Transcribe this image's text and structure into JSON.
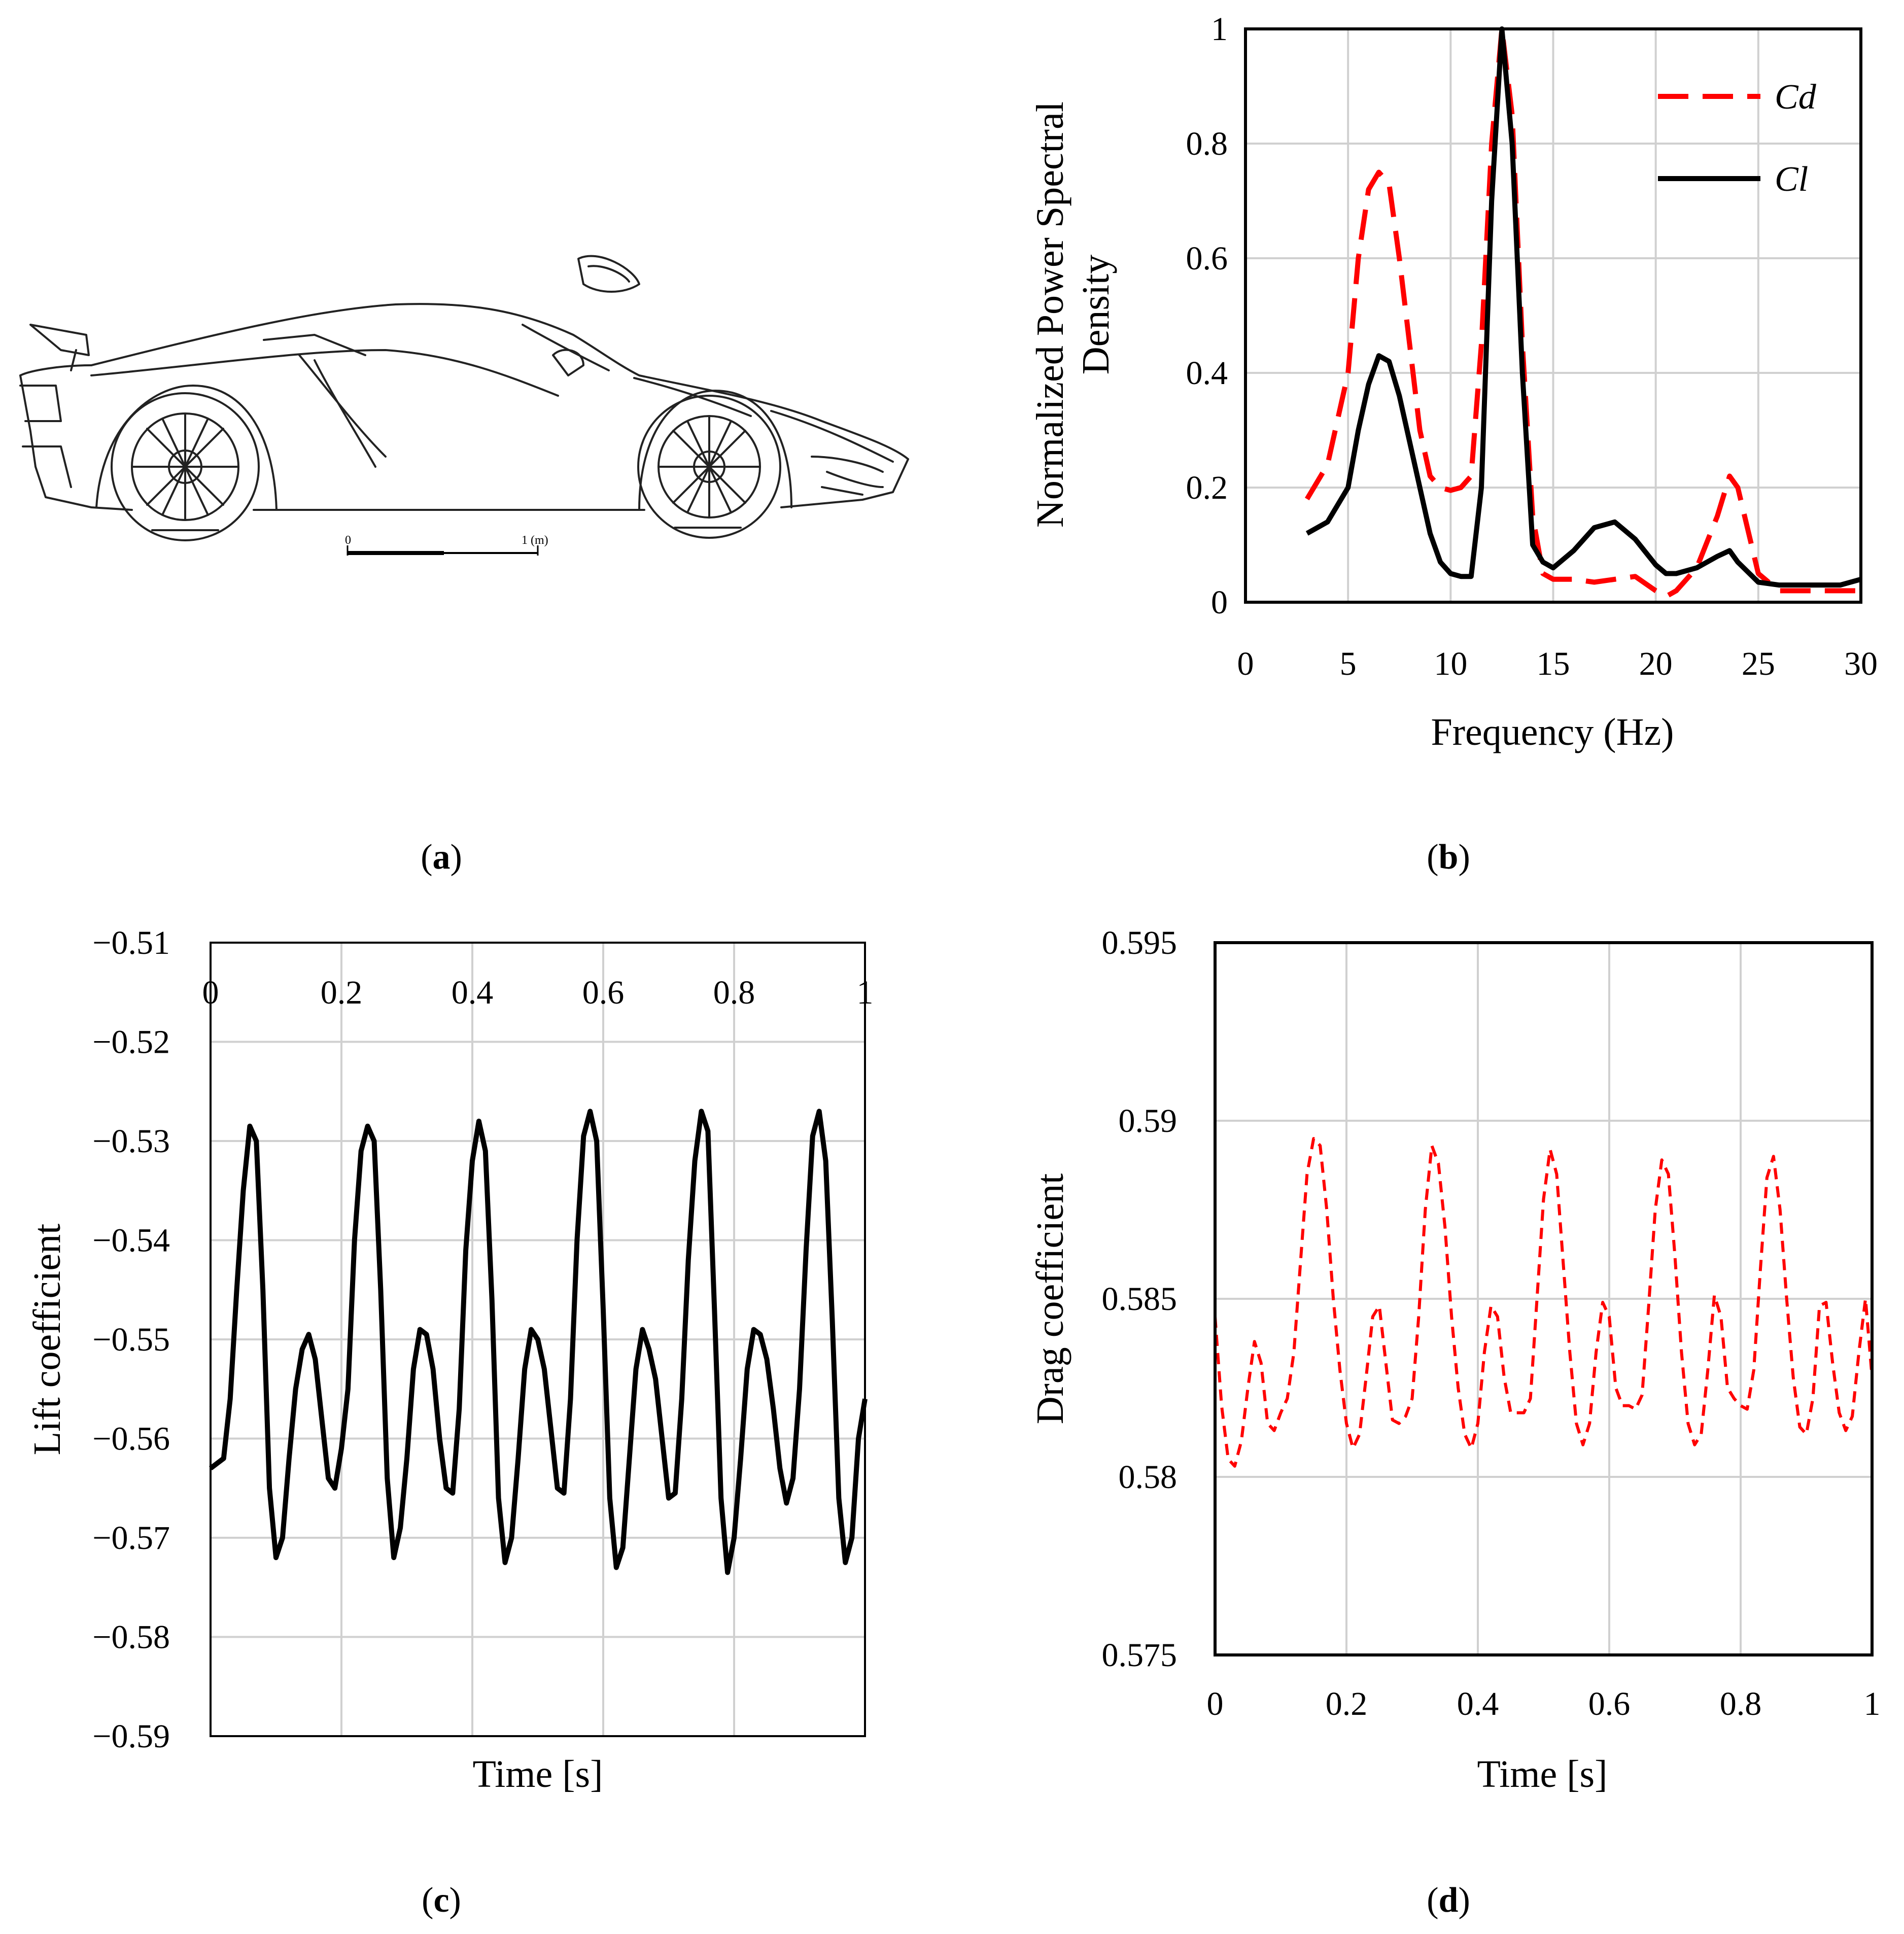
{
  "figure": {
    "panel_labels": [
      {
        "open": "(",
        "letter": "a",
        "close": ")"
      },
      {
        "open": "(",
        "letter": "b",
        "close": ")"
      },
      {
        "open": "(",
        "letter": "c",
        "close": ")"
      },
      {
        "open": "(",
        "letter": "d",
        "close": ")"
      }
    ],
    "car_scale": {
      "start_label": "0",
      "end_label": "1 (m)"
    }
  },
  "colors": {
    "cd": "#ff0000",
    "cl": "#000000",
    "grid": "#d0d0d0"
  },
  "chart_data": [
    {
      "id": "b",
      "type": "line",
      "title": "",
      "xlabel": "Frequency (Hz)",
      "ylabel_lines": [
        "Normalized Power Spectral",
        "Density"
      ],
      "xlim": [
        0,
        30
      ],
      "ylim": [
        0,
        1
      ],
      "xticks": [
        0,
        5,
        10,
        15,
        20,
        25,
        30
      ],
      "yticks": [
        0,
        0.2,
        0.4,
        0.6,
        0.8,
        1
      ],
      "xtick_labels": [
        "0",
        "5",
        "10",
        "15",
        "20",
        "25",
        "30"
      ],
      "ytick_labels": [
        "0",
        "0.2",
        "0.4",
        "0.6",
        "0.8",
        "1"
      ],
      "legend_position": "top-right",
      "series": [
        {
          "name": "Cd",
          "style": "long-dash",
          "color": "#ff0000",
          "x": [
            3,
            4,
            5,
            5.5,
            6,
            6.5,
            7,
            7.5,
            8,
            8.5,
            9,
            9.5,
            10,
            10.5,
            11,
            11.5,
            12,
            12.5,
            13,
            13.5,
            14,
            14.5,
            15,
            16,
            17,
            18,
            19,
            20,
            20.5,
            21,
            22,
            23,
            23.6,
            24,
            25,
            26,
            27,
            28,
            29,
            30
          ],
          "y": [
            0.18,
            0.24,
            0.4,
            0.6,
            0.72,
            0.75,
            0.73,
            0.6,
            0.45,
            0.3,
            0.22,
            0.2,
            0.195,
            0.2,
            0.22,
            0.45,
            0.8,
            1.0,
            0.85,
            0.45,
            0.15,
            0.05,
            0.04,
            0.04,
            0.035,
            0.04,
            0.045,
            0.02,
            0.01,
            0.02,
            0.06,
            0.15,
            0.22,
            0.2,
            0.05,
            0.02,
            0.02,
            0.02,
            0.02,
            0.02
          ]
        },
        {
          "name": "Cl",
          "style": "solid",
          "color": "#000000",
          "x": [
            3,
            4,
            5,
            5.5,
            6,
            6.5,
            7,
            7.5,
            8,
            8.5,
            9,
            9.5,
            10,
            10.5,
            11,
            11.5,
            12,
            12.5,
            13,
            13.5,
            14,
            14.5,
            15,
            16,
            17,
            18,
            19,
            20,
            20.5,
            21,
            22,
            23,
            23.6,
            24,
            25,
            26,
            27,
            28,
            29,
            30
          ],
          "y": [
            0.12,
            0.14,
            0.2,
            0.3,
            0.38,
            0.43,
            0.42,
            0.36,
            0.28,
            0.2,
            0.12,
            0.07,
            0.05,
            0.045,
            0.045,
            0.2,
            0.7,
            1.0,
            0.8,
            0.4,
            0.1,
            0.07,
            0.06,
            0.09,
            0.13,
            0.14,
            0.11,
            0.065,
            0.05,
            0.05,
            0.06,
            0.08,
            0.09,
            0.07,
            0.035,
            0.03,
            0.03,
            0.03,
            0.03,
            0.04
          ]
        }
      ]
    },
    {
      "id": "c",
      "type": "line",
      "title": "",
      "xlabel": "Time [s]",
      "ylabel": "Lift coefficient",
      "xlim": [
        0,
        1
      ],
      "ylim": [
        -0.59,
        -0.51
      ],
      "xticks": [
        0,
        0.2,
        0.4,
        0.6,
        0.8,
        1
      ],
      "yticks": [
        -0.59,
        -0.58,
        -0.57,
        -0.56,
        -0.55,
        -0.54,
        -0.53,
        -0.52,
        -0.51
      ],
      "xtick_labels": [
        "0",
        "0.2",
        "0.4",
        "0.6",
        "0.8",
        "1"
      ],
      "ytick_labels": [
        "−0.59",
        "−0.58",
        "−0.57",
        "−0.56",
        "−0.55",
        "−0.54",
        "−0.53",
        "−0.52",
        "−0.51"
      ],
      "series": [
        {
          "name": "Cl",
          "style": "solid",
          "color": "#000000",
          "x": [
            0,
            0.01,
            0.02,
            0.03,
            0.04,
            0.05,
            0.06,
            0.07,
            0.08,
            0.09,
            0.1,
            0.11,
            0.12,
            0.13,
            0.14,
            0.15,
            0.16,
            0.17,
            0.18,
            0.19,
            0.2,
            0.21,
            0.22,
            0.23,
            0.24,
            0.25,
            0.26,
            0.27,
            0.28,
            0.29,
            0.3,
            0.31,
            0.32,
            0.33,
            0.34,
            0.35,
            0.36,
            0.37,
            0.38,
            0.39,
            0.4,
            0.41,
            0.42,
            0.43,
            0.44,
            0.45,
            0.46,
            0.47,
            0.48,
            0.49,
            0.5,
            0.51,
            0.52,
            0.53,
            0.54,
            0.55,
            0.56,
            0.57,
            0.58,
            0.59,
            0.6,
            0.61,
            0.62,
            0.63,
            0.64,
            0.65,
            0.66,
            0.67,
            0.68,
            0.69,
            0.7,
            0.71,
            0.72,
            0.73,
            0.74,
            0.75,
            0.76,
            0.77,
            0.78,
            0.79,
            0.8,
            0.81,
            0.82,
            0.83,
            0.84,
            0.85,
            0.86,
            0.87,
            0.88,
            0.89,
            0.9,
            0.91,
            0.92,
            0.93,
            0.94,
            0.95,
            0.96,
            0.97,
            0.98,
            0.99,
            1
          ],
          "y": [
            -0.563,
            -0.5625,
            -0.562,
            -0.556,
            -0.545,
            -0.535,
            -0.5285,
            -0.53,
            -0.545,
            -0.565,
            -0.572,
            -0.57,
            -0.562,
            -0.555,
            -0.551,
            -0.5495,
            -0.552,
            -0.558,
            -0.564,
            -0.565,
            -0.561,
            -0.555,
            -0.54,
            -0.531,
            -0.5285,
            -0.53,
            -0.545,
            -0.564,
            -0.572,
            -0.569,
            -0.562,
            -0.553,
            -0.549,
            -0.5495,
            -0.553,
            -0.56,
            -0.565,
            -0.5655,
            -0.557,
            -0.541,
            -0.532,
            -0.528,
            -0.531,
            -0.546,
            -0.566,
            -0.5725,
            -0.57,
            -0.562,
            -0.553,
            -0.549,
            -0.55,
            -0.553,
            -0.559,
            -0.565,
            -0.5655,
            -0.556,
            -0.54,
            -0.5295,
            -0.527,
            -0.53,
            -0.547,
            -0.566,
            -0.573,
            -0.571,
            -0.562,
            -0.553,
            -0.549,
            -0.551,
            -0.554,
            -0.56,
            -0.566,
            -0.5655,
            -0.556,
            -0.542,
            -0.532,
            -0.527,
            -0.529,
            -0.547,
            -0.566,
            -0.5735,
            -0.57,
            -0.562,
            -0.553,
            -0.549,
            -0.5495,
            -0.552,
            -0.557,
            -0.563,
            -0.5665,
            -0.564,
            -0.555,
            -0.541,
            -0.5295,
            -0.527,
            -0.532,
            -0.548,
            -0.566,
            -0.5725,
            -0.57,
            -0.56,
            -0.556
          ]
        }
      ]
    },
    {
      "id": "d",
      "type": "line",
      "title": "",
      "xlabel": "Time [s]",
      "ylabel": "Drag coefficient",
      "xlim": [
        0,
        1
      ],
      "ylim": [
        0.575,
        0.595
      ],
      "xticks": [
        0,
        0.2,
        0.4,
        0.6,
        0.8,
        1
      ],
      "yticks": [
        0.575,
        0.58,
        0.585,
        0.59,
        0.595
      ],
      "xtick_labels": [
        "0",
        "0.2",
        "0.4",
        "0.6",
        "0.8",
        "1"
      ],
      "ytick_labels": [
        "0.575",
        "0.58",
        "0.585",
        "0.59",
        "0.595"
      ],
      "series": [
        {
          "name": "Cd",
          "style": "short-dash",
          "color": "#ff0000",
          "x": [
            0,
            0.01,
            0.02,
            0.03,
            0.04,
            0.05,
            0.06,
            0.07,
            0.08,
            0.09,
            0.1,
            0.11,
            0.12,
            0.13,
            0.14,
            0.15,
            0.16,
            0.17,
            0.18,
            0.19,
            0.2,
            0.21,
            0.22,
            0.23,
            0.24,
            0.25,
            0.26,
            0.27,
            0.28,
            0.29,
            0.3,
            0.31,
            0.32,
            0.33,
            0.34,
            0.35,
            0.36,
            0.37,
            0.38,
            0.39,
            0.4,
            0.41,
            0.42,
            0.43,
            0.44,
            0.45,
            0.46,
            0.47,
            0.48,
            0.49,
            0.5,
            0.51,
            0.52,
            0.53,
            0.54,
            0.55,
            0.56,
            0.57,
            0.58,
            0.59,
            0.6,
            0.61,
            0.62,
            0.63,
            0.64,
            0.65,
            0.66,
            0.67,
            0.68,
            0.69,
            0.7,
            0.71,
            0.72,
            0.73,
            0.74,
            0.75,
            0.76,
            0.77,
            0.78,
            0.79,
            0.8,
            0.81,
            0.82,
            0.83,
            0.84,
            0.85,
            0.86,
            0.87,
            0.88,
            0.89,
            0.9,
            0.91,
            0.92,
            0.93,
            0.94,
            0.95,
            0.96,
            0.97,
            0.98,
            0.99,
            1
          ],
          "y": [
            0.5845,
            0.582,
            0.5805,
            0.5803,
            0.581,
            0.5825,
            0.5838,
            0.5832,
            0.5815,
            0.5813,
            0.5818,
            0.5822,
            0.5835,
            0.586,
            0.5885,
            0.5895,
            0.5893,
            0.5875,
            0.585,
            0.583,
            0.5815,
            0.5808,
            0.5812,
            0.5828,
            0.5845,
            0.5848,
            0.5832,
            0.5816,
            0.5815,
            0.5817,
            0.5822,
            0.5845,
            0.5875,
            0.5893,
            0.5888,
            0.587,
            0.5845,
            0.5825,
            0.5812,
            0.5808,
            0.5815,
            0.5835,
            0.5848,
            0.5845,
            0.5828,
            0.5818,
            0.5818,
            0.5818,
            0.5822,
            0.585,
            0.5878,
            0.5892,
            0.5885,
            0.586,
            0.5835,
            0.5815,
            0.5809,
            0.5815,
            0.5835,
            0.5849,
            0.5845,
            0.5825,
            0.582,
            0.582,
            0.5819,
            0.5823,
            0.5848,
            0.5875,
            0.5889,
            0.5885,
            0.5862,
            0.5835,
            0.5815,
            0.5809,
            0.5812,
            0.583,
            0.5851,
            0.5845,
            0.5825,
            0.5822,
            0.582,
            0.5819,
            0.583,
            0.5858,
            0.5884,
            0.589,
            0.5875,
            0.585,
            0.5828,
            0.5814,
            0.5812,
            0.5822,
            0.5848,
            0.5849,
            0.5832,
            0.5818,
            0.5813,
            0.5817,
            0.5835,
            0.585,
            0.5828
          ]
        }
      ]
    }
  ]
}
